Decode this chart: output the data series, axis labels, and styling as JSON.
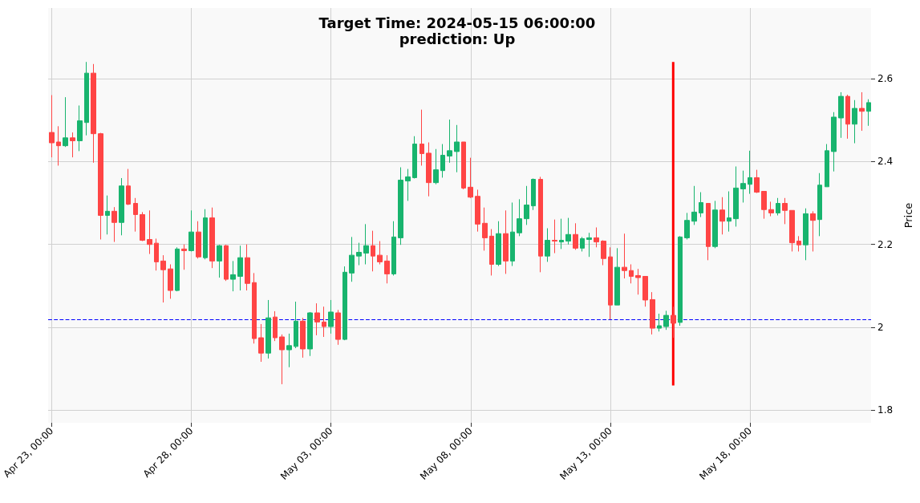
{
  "chart_data": {
    "type": "candlestick",
    "title": "Target Time: 2024-05-15 06:00:00",
    "subtitle": "prediction: Up",
    "ylabel": "Price",
    "x": [
      "2024-04-23T00:00",
      "2024-04-23T06:00",
      "2024-04-23T12:00",
      "2024-04-23T18:00",
      "2024-04-24T00:00",
      "2024-04-24T06:00",
      "2024-04-24T12:00",
      "2024-04-24T18:00",
      "2024-04-25T00:00",
      "2024-04-25T06:00",
      "2024-04-25T12:00",
      "2024-04-25T18:00",
      "2024-04-26T00:00",
      "2024-04-26T06:00",
      "2024-04-26T12:00",
      "2024-04-26T18:00",
      "2024-04-27T00:00",
      "2024-04-27T06:00",
      "2024-04-27T12:00",
      "2024-04-27T18:00",
      "2024-04-28T00:00",
      "2024-04-28T06:00",
      "2024-04-28T12:00",
      "2024-04-28T18:00",
      "2024-04-29T00:00",
      "2024-04-29T06:00",
      "2024-04-29T12:00",
      "2024-04-29T18:00",
      "2024-04-30T00:00",
      "2024-04-30T06:00",
      "2024-04-30T12:00",
      "2024-04-30T18:00",
      "2024-05-01T00:00",
      "2024-05-01T06:00",
      "2024-05-01T12:00",
      "2024-05-01T18:00",
      "2024-05-02T00:00",
      "2024-05-02T06:00",
      "2024-05-02T12:00",
      "2024-05-02T18:00",
      "2024-05-03T00:00",
      "2024-05-03T06:00",
      "2024-05-03T12:00",
      "2024-05-03T18:00",
      "2024-05-04T00:00",
      "2024-05-04T06:00",
      "2024-05-04T12:00",
      "2024-05-04T18:00",
      "2024-05-05T00:00",
      "2024-05-05T06:00",
      "2024-05-05T12:00",
      "2024-05-05T18:00",
      "2024-05-06T00:00",
      "2024-05-06T06:00",
      "2024-05-06T12:00",
      "2024-05-06T18:00",
      "2024-05-07T00:00",
      "2024-05-07T06:00",
      "2024-05-07T12:00",
      "2024-05-07T18:00",
      "2024-05-08T00:00",
      "2024-05-08T06:00",
      "2024-05-08T12:00",
      "2024-05-08T18:00",
      "2024-05-09T00:00",
      "2024-05-09T06:00",
      "2024-05-09T12:00",
      "2024-05-09T18:00",
      "2024-05-10T00:00",
      "2024-05-10T06:00",
      "2024-05-10T12:00",
      "2024-05-10T18:00",
      "2024-05-11T00:00",
      "2024-05-11T06:00",
      "2024-05-11T12:00",
      "2024-05-11T18:00",
      "2024-05-12T00:00",
      "2024-05-12T06:00",
      "2024-05-12T12:00",
      "2024-05-12T18:00",
      "2024-05-13T00:00",
      "2024-05-13T06:00",
      "2024-05-13T12:00",
      "2024-05-13T18:00",
      "2024-05-14T00:00",
      "2024-05-14T06:00",
      "2024-05-14T12:00",
      "2024-05-14T18:00",
      "2024-05-15T00:00",
      "2024-05-15T06:00",
      "2024-05-15T12:00",
      "2024-05-15T18:00",
      "2024-05-16T00:00",
      "2024-05-16T06:00",
      "2024-05-16T12:00",
      "2024-05-16T18:00",
      "2024-05-17T00:00",
      "2024-05-17T06:00",
      "2024-05-17T12:00",
      "2024-05-17T18:00",
      "2024-05-18T00:00",
      "2024-05-18T06:00",
      "2024-05-18T12:00",
      "2024-05-18T18:00",
      "2024-05-19T00:00",
      "2024-05-19T06:00",
      "2024-05-19T12:00",
      "2024-05-19T18:00",
      "2024-05-20T00:00",
      "2024-05-20T06:00",
      "2024-05-20T12:00",
      "2024-05-20T18:00",
      "2024-05-21T00:00",
      "2024-05-21T06:00",
      "2024-05-21T12:00",
      "2024-05-21T18:00",
      "2024-05-22T00:00",
      "2024-05-22T06:00"
    ],
    "ohlc": [
      [
        2.47,
        2.56,
        2.41,
        2.445
      ],
      [
        2.447,
        2.485,
        2.39,
        2.438
      ],
      [
        2.438,
        2.555,
        2.435,
        2.457
      ],
      [
        2.457,
        2.47,
        2.41,
        2.45
      ],
      [
        2.45,
        2.535,
        2.425,
        2.498
      ],
      [
        2.494,
        2.64,
        2.463,
        2.613
      ],
      [
        2.613,
        2.635,
        2.397,
        2.467
      ],
      [
        2.467,
        2.469,
        2.212,
        2.27
      ],
      [
        2.27,
        2.318,
        2.224,
        2.28
      ],
      [
        2.28,
        2.29,
        2.206,
        2.253
      ],
      [
        2.253,
        2.36,
        2.222,
        2.341
      ],
      [
        2.341,
        2.382,
        2.295,
        2.297
      ],
      [
        2.299,
        2.312,
        2.231,
        2.272
      ],
      [
        2.272,
        2.278,
        2.208,
        2.21
      ],
      [
        2.212,
        2.282,
        2.177,
        2.2
      ],
      [
        2.203,
        2.214,
        2.137,
        2.158
      ],
      [
        2.16,
        2.174,
        2.06,
        2.139
      ],
      [
        2.141,
        2.152,
        2.069,
        2.089
      ],
      [
        2.089,
        2.193,
        2.087,
        2.189
      ],
      [
        2.189,
        2.2,
        2.139,
        2.185
      ],
      [
        2.185,
        2.282,
        2.183,
        2.23
      ],
      [
        2.23,
        2.256,
        2.166,
        2.17
      ],
      [
        2.168,
        2.285,
        2.164,
        2.264
      ],
      [
        2.264,
        2.289,
        2.143,
        2.16
      ],
      [
        2.16,
        2.199,
        2.12,
        2.197
      ],
      [
        2.197,
        2.199,
        2.112,
        2.116
      ],
      [
        2.116,
        2.16,
        2.087,
        2.127
      ],
      [
        2.123,
        2.197,
        2.089,
        2.168
      ],
      [
        2.168,
        2.2,
        2.089,
        2.106
      ],
      [
        2.108,
        2.131,
        1.961,
        1.973
      ],
      [
        1.975,
        2.008,
        1.917,
        1.938
      ],
      [
        1.938,
        2.066,
        1.925,
        2.023
      ],
      [
        2.025,
        2.039,
        1.967,
        1.975
      ],
      [
        1.977,
        1.983,
        1.863,
        1.946
      ],
      [
        1.946,
        1.985,
        1.904,
        1.956
      ],
      [
        1.954,
        2.062,
        1.95,
        2.015
      ],
      [
        2.015,
        2.023,
        1.927,
        1.948
      ],
      [
        1.948,
        2.037,
        1.931,
        2.035
      ],
      [
        2.035,
        2.058,
        1.981,
        2.013
      ],
      [
        2.013,
        2.05,
        1.977,
        2.002
      ],
      [
        2.002,
        2.066,
        1.985,
        2.037
      ],
      [
        2.035,
        2.042,
        1.958,
        1.971
      ],
      [
        1.971,
        2.147,
        1.969,
        2.133
      ],
      [
        2.131,
        2.218,
        2.11,
        2.174
      ],
      [
        2.172,
        2.204,
        2.15,
        2.181
      ],
      [
        2.179,
        2.249,
        2.152,
        2.197
      ],
      [
        2.197,
        2.233,
        2.135,
        2.172
      ],
      [
        2.174,
        2.208,
        2.152,
        2.158
      ],
      [
        2.16,
        2.174,
        2.106,
        2.129
      ],
      [
        2.129,
        2.256,
        2.125,
        2.218
      ],
      [
        2.216,
        2.386,
        2.199,
        2.355
      ],
      [
        2.353,
        2.382,
        2.305,
        2.363
      ],
      [
        2.361,
        2.461,
        2.359,
        2.442
      ],
      [
        2.442,
        2.525,
        2.39,
        2.419
      ],
      [
        2.42,
        2.446,
        2.316,
        2.349
      ],
      [
        2.349,
        2.43,
        2.345,
        2.38
      ],
      [
        2.378,
        2.442,
        2.361,
        2.415
      ],
      [
        2.413,
        2.501,
        2.397,
        2.426
      ],
      [
        2.424,
        2.488,
        2.374,
        2.447
      ],
      [
        2.447,
        2.447,
        2.333,
        2.336
      ],
      [
        2.338,
        2.409,
        2.312,
        2.314
      ],
      [
        2.316,
        2.332,
        2.231,
        2.249
      ],
      [
        2.251,
        2.289,
        2.185,
        2.216
      ],
      [
        2.22,
        2.237,
        2.125,
        2.152
      ],
      [
        2.152,
        2.256,
        2.148,
        2.226
      ],
      [
        2.226,
        2.282,
        2.129,
        2.16
      ],
      [
        2.16,
        2.301,
        2.148,
        2.23
      ],
      [
        2.228,
        2.309,
        2.22,
        2.262
      ],
      [
        2.262,
        2.341,
        2.247,
        2.295
      ],
      [
        2.293,
        2.359,
        2.283,
        2.357
      ],
      [
        2.357,
        2.363,
        2.133,
        2.172
      ],
      [
        2.172,
        2.239,
        2.158,
        2.21
      ],
      [
        2.21,
        2.26,
        2.179,
        2.208
      ],
      [
        2.206,
        2.262,
        2.189,
        2.21
      ],
      [
        2.208,
        2.264,
        2.2,
        2.224
      ],
      [
        2.224,
        2.251,
        2.187,
        2.191
      ],
      [
        2.191,
        2.218,
        2.183,
        2.214
      ],
      [
        2.212,
        2.228,
        2.17,
        2.216
      ],
      [
        2.216,
        2.241,
        2.193,
        2.206
      ],
      [
        2.208,
        2.21,
        2.15,
        2.166
      ],
      [
        2.17,
        2.193,
        2.019,
        2.054
      ],
      [
        2.054,
        2.191,
        2.054,
        2.145
      ],
      [
        2.145,
        2.226,
        2.118,
        2.137
      ],
      [
        2.137,
        2.152,
        2.106,
        2.123
      ],
      [
        2.125,
        2.141,
        2.079,
        2.12
      ],
      [
        2.123,
        2.123,
        2.05,
        2.066
      ],
      [
        2.067,
        2.085,
        1.983,
        1.998
      ],
      [
        1.998,
        2.033,
        1.99,
        2.004
      ],
      [
        2.002,
        2.04,
        1.994,
        2.029
      ],
      [
        2.029,
        2.05,
        1.975,
        2.01
      ],
      [
        2.012,
        2.22,
        2.004,
        2.218
      ],
      [
        2.216,
        2.276,
        2.212,
        2.258
      ],
      [
        2.256,
        2.341,
        2.247,
        2.278
      ],
      [
        2.276,
        2.326,
        2.266,
        2.301
      ],
      [
        2.299,
        2.299,
        2.162,
        2.195
      ],
      [
        2.195,
        2.305,
        2.191,
        2.283
      ],
      [
        2.283,
        2.314,
        2.224,
        2.256
      ],
      [
        2.256,
        2.328,
        2.231,
        2.264
      ],
      [
        2.262,
        2.388,
        2.243,
        2.336
      ],
      [
        2.334,
        2.378,
        2.301,
        2.347
      ],
      [
        2.345,
        2.426,
        2.322,
        2.361
      ],
      [
        2.361,
        2.38,
        2.324,
        2.326
      ],
      [
        2.328,
        2.328,
        2.262,
        2.284
      ],
      [
        2.284,
        2.303,
        2.268,
        2.276
      ],
      [
        2.276,
        2.312,
        2.27,
        2.299
      ],
      [
        2.299,
        2.312,
        2.249,
        2.282
      ],
      [
        2.282,
        2.282,
        2.183,
        2.204
      ],
      [
        2.208,
        2.22,
        2.183,
        2.199
      ],
      [
        2.199,
        2.287,
        2.162,
        2.274
      ],
      [
        2.274,
        2.28,
        2.183,
        2.258
      ],
      [
        2.26,
        2.372,
        2.22,
        2.343
      ],
      [
        2.339,
        2.442,
        2.339,
        2.426
      ],
      [
        2.424,
        2.519,
        2.376,
        2.507
      ],
      [
        2.505,
        2.567,
        2.457,
        2.557
      ],
      [
        2.557,
        2.561,
        2.455,
        2.49
      ],
      [
        2.49,
        2.548,
        2.444,
        2.528
      ],
      [
        2.528,
        2.567,
        2.474,
        2.521
      ],
      [
        2.521,
        2.55,
        2.486,
        2.542
      ]
    ],
    "colors": [
      "#ff4545",
      "#ff4545",
      "#18b46e",
      "#ff4545",
      "#18b46e",
      "#18b46e",
      "#ff4545",
      "#ff4545",
      "#18b46e",
      "#ff4545",
      "#18b46e",
      "#ff4545",
      "#ff4545",
      "#ff4545",
      "#ff4545",
      "#ff4545",
      "#ff4545",
      "#ff4545",
      "#18b46e",
      "#ff4545",
      "#18b46e",
      "#ff4545",
      "#18b46e",
      "#ff4545",
      "#18b46e",
      "#ff4545",
      "#18b46e",
      "#18b46e",
      "#ff4545",
      "#ff4545",
      "#ff4545",
      "#18b46e",
      "#ff4545",
      "#ff4545",
      "#18b46e",
      "#18b46e",
      "#ff4545",
      "#18b46e",
      "#ff4545",
      "#ff4545",
      "#18b46e",
      "#ff4545",
      "#18b46e",
      "#18b46e",
      "#18b46e",
      "#18b46e",
      "#ff4545",
      "#ff4545",
      "#ff4545",
      "#18b46e",
      "#18b46e",
      "#18b46e",
      "#18b46e",
      "#ff4545",
      "#ff4545",
      "#18b46e",
      "#18b46e",
      "#18b46e",
      "#18b46e",
      "#ff4545",
      "#ff4545",
      "#ff4545",
      "#ff4545",
      "#ff4545",
      "#18b46e",
      "#ff4545",
      "#18b46e",
      "#18b46e",
      "#18b46e",
      "#18b46e",
      "#ff4545",
      "#18b46e",
      "#ff4545",
      "#18b46e",
      "#18b46e",
      "#ff4545",
      "#18b46e",
      "#18b46e",
      "#ff4545",
      "#ff4545",
      "#ff4545",
      "#18b46e",
      "#ff4545",
      "#ff4545",
      "#ff4545",
      "#ff4545",
      "#ff4545",
      "#18b46e",
      "#18b46e",
      "#ff4545",
      "#18b46e",
      "#18b46e",
      "#18b46e",
      "#18b46e",
      "#ff4545",
      "#18b46e",
      "#ff4545",
      "#18b46e",
      "#18b46e",
      "#18b46e",
      "#18b46e",
      "#ff4545",
      "#ff4545",
      "#ff4545",
      "#18b46e",
      "#ff4545",
      "#ff4545",
      "#ff4545",
      "#18b46e",
      "#ff4545",
      "#18b46e",
      "#18b46e",
      "#18b46e",
      "#18b46e",
      "#ff4545",
      "#18b46e",
      "#ff4545",
      "#18b46e"
    ],
    "series": [
      {
        "type": "line",
        "x": [
          "2024-05-15T06:00",
          "2024-05-15T06:00"
        ],
        "values": [
          1.86,
          2.64
        ],
        "color": "#ff0000"
      }
    ],
    "ref_lines": [
      {
        "axis": "y",
        "value": 2.022,
        "color": "#0000ff",
        "line_style": "dashed"
      }
    ],
    "xlim": [
      "2024-04-22T21:00",
      "2024-05-22T08:00"
    ],
    "xticks": [
      {
        "value": "2024-04-23T00:00",
        "label": "Apr 23, 00:00"
      },
      {
        "value": "2024-04-28T00:00",
        "label": "Apr 28, 00:00"
      },
      {
        "value": "2024-05-03T00:00",
        "label": "May 03, 00:00"
      },
      {
        "value": "2024-05-08T00:00",
        "label": "May 08, 00:00"
      },
      {
        "value": "2024-05-13T00:00",
        "label": "May 13, 00:00"
      },
      {
        "value": "2024-05-18T00:00",
        "label": "May 18, 00:00"
      }
    ],
    "ylim": [
      1.77,
      2.77
    ],
    "yticks": [
      1.8,
      2.0,
      2.2,
      2.4,
      2.6
    ],
    "grid": true
  }
}
